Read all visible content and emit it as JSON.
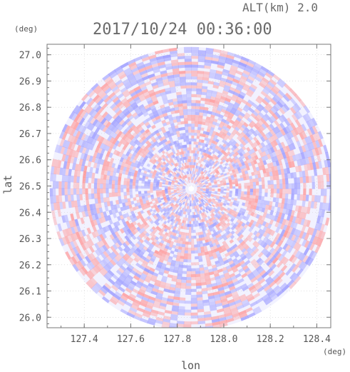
{
  "header": {
    "altitude_label": "ALT(km) 2.0",
    "timestamp": "2017/10/24 00:36:00"
  },
  "chart_data": {
    "type": "heatmap",
    "title": "2017/10/24 00:36:00",
    "subtitle": "ALT(km) 2.0",
    "xlabel": "lon",
    "ylabel": "lat",
    "x_unit": "(deg)",
    "y_unit": "(deg)",
    "xlim": [
      127.24,
      128.46
    ],
    "ylim": [
      25.96,
      27.04
    ],
    "x_ticks": [
      "127.4",
      "127.6",
      "127.8",
      "128.0",
      "128.2",
      "128.4"
    ],
    "y_ticks": [
      "26.0",
      "26.1",
      "26.2",
      "26.3",
      "26.4",
      "26.5",
      "26.6",
      "26.7",
      "26.8",
      "26.9",
      "27.0"
    ],
    "center": {
      "lon": 127.86,
      "lat": 26.49
    },
    "radius_deg_lat": 0.54,
    "grid": true,
    "colors": {
      "positive": "#ff9a9a",
      "negative": "#9a9aff",
      "neutral": "#f2f2ff",
      "axis": "#777777"
    }
  }
}
